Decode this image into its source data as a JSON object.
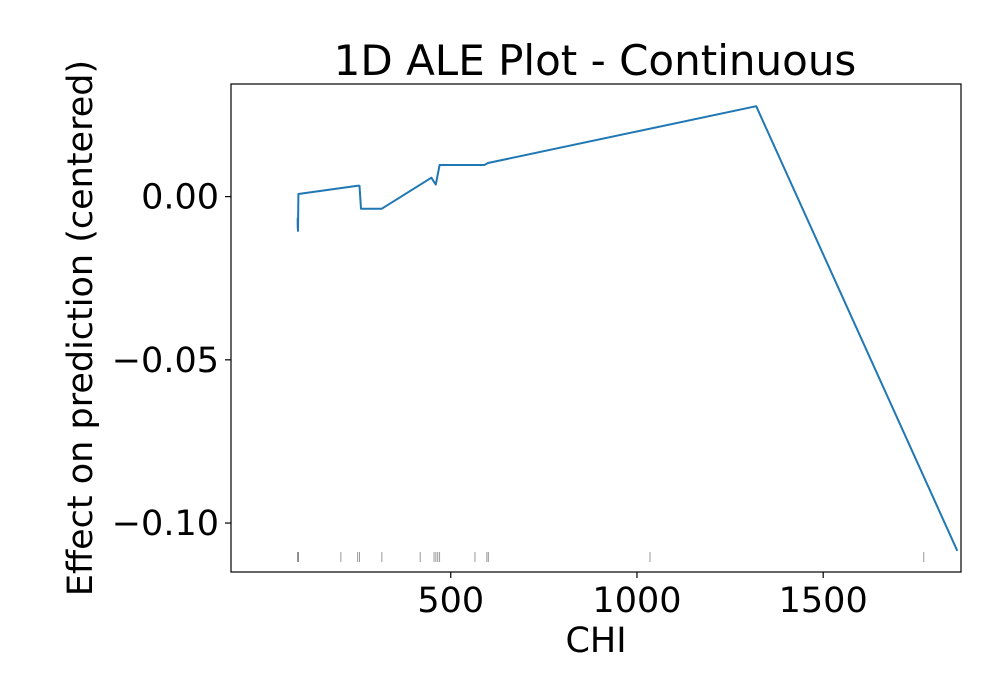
{
  "chart_data": {
    "type": "line",
    "title": "1D ALE Plot - Continuous",
    "xlabel": "CHI",
    "ylabel": "Effect on prediction (centered)",
    "xlim": [
      -90,
      1870
    ],
    "ylim": [
      -0.115,
      0.0345
    ],
    "xticks": [
      500,
      1000,
      1500
    ],
    "xtick_labels": [
      "500",
      "1000",
      "1500"
    ],
    "yticks": [
      0.0,
      -0.05,
      -0.1
    ],
    "ytick_labels": [
      "0.00",
      "−0.05",
      "−0.10"
    ],
    "grid": false,
    "line_color": "#1f77b4",
    "rug_color": "#555555",
    "series": [
      {
        "x": [
          89,
          89,
          90,
          91,
          250,
          255,
          259,
          315,
          448,
          455,
          460,
          470,
          590,
          600,
          1320,
          1860
        ],
        "y": [
          -0.0065,
          -0.009,
          -0.0105,
          0.0008,
          0.0033,
          0.0033,
          -0.0037,
          -0.0037,
          0.0058,
          0.0045,
          0.0037,
          0.0097,
          0.0097,
          0.0103,
          0.0277,
          -0.1085
        ]
      }
    ],
    "rug_x": [
      89,
      90,
      91,
      205,
      250,
      255,
      315,
      418,
      455,
      460,
      465,
      470,
      565,
      597,
      601,
      1035,
      1770
    ]
  }
}
